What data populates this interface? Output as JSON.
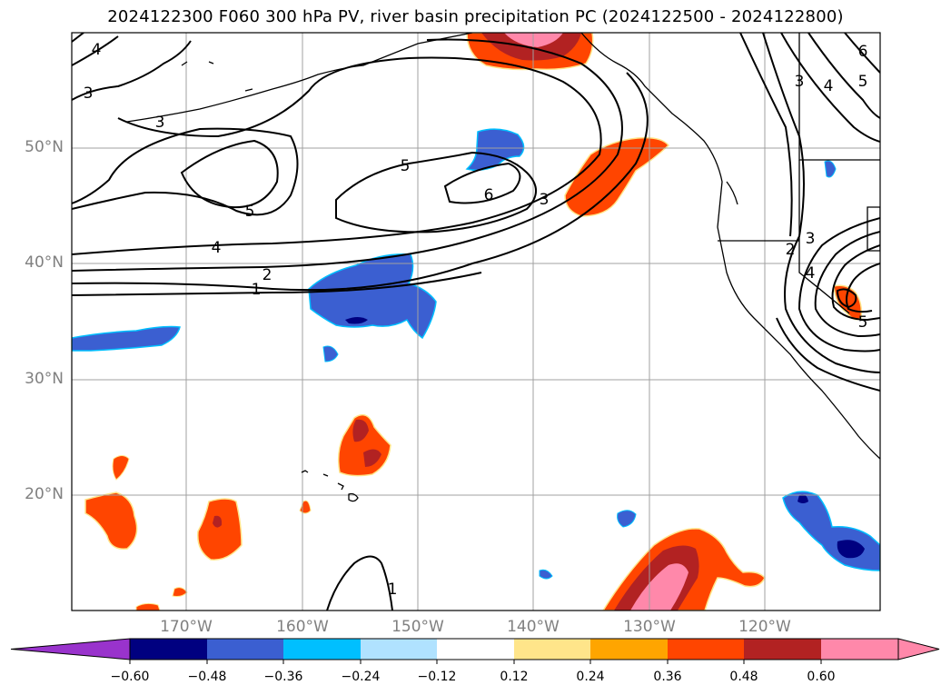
{
  "title": "2024122300 F060 300 hPa PV, river basin precipitation PC (2024122500 - 2024122800)",
  "map": {
    "lon_labels": [
      "170°W",
      "160°W",
      "150°W",
      "140°W",
      "130°W",
      "120°W"
    ],
    "lat_labels": [
      "50°N",
      "40°N",
      "30°N",
      "20°N"
    ],
    "contour_labels": [
      "4",
      "3",
      "3",
      "5",
      "5",
      "6",
      "3",
      "4",
      "2",
      "1",
      "1",
      "3",
      "4",
      "5",
      "6",
      "2",
      "3",
      "4",
      "5"
    ],
    "colors": {
      "coast": "#000000",
      "grid": "#a0a0a0",
      "contour": "#000000",
      "gridline_label": "#808080"
    }
  },
  "colorbar": {
    "ticks": [
      "−0.60",
      "−0.48",
      "−0.36",
      "−0.24",
      "−0.12",
      "0.12",
      "0.24",
      "0.36",
      "0.48",
      "0.60"
    ],
    "colors": [
      "#9933cc",
      "#000080",
      "#3b5fd1",
      "#00bfff",
      "#b0e2ff",
      "#ffffff",
      "#ffe58a",
      "#ffa500",
      "#ff4500",
      "#b22222",
      "#ff88aa"
    ]
  }
}
